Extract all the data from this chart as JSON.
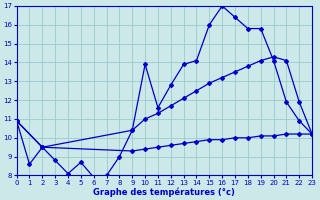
{
  "xlabel": "Graphe des températures (°c)",
  "bg_color": "#cce8e8",
  "line_color": "#0000cc",
  "grid_color": "#99cccc",
  "xlim": [
    0,
    23
  ],
  "ylim": [
    8,
    17
  ],
  "xticks": [
    0,
    1,
    2,
    3,
    4,
    5,
    6,
    7,
    8,
    9,
    10,
    11,
    12,
    13,
    14,
    15,
    16,
    17,
    18,
    19,
    20,
    21,
    22,
    23
  ],
  "yticks": [
    8,
    9,
    10,
    11,
    12,
    13,
    14,
    15,
    16,
    17
  ],
  "series1_x": [
    0,
    1,
    2,
    3,
    4,
    5,
    6,
    7,
    8,
    9,
    10,
    11,
    12,
    13,
    14,
    15,
    16,
    17,
    18,
    19,
    20,
    21,
    22,
    23
  ],
  "series1_y": [
    10.9,
    8.6,
    9.5,
    8.8,
    8.1,
    8.7,
    7.9,
    8.0,
    9.0,
    10.4,
    13.9,
    11.6,
    12.8,
    13.9,
    14.1,
    16.0,
    17.0,
    16.4,
    15.8,
    15.8,
    14.1,
    11.9,
    10.9,
    10.2
  ],
  "series2_x": [
    0,
    2,
    9,
    10,
    11,
    12,
    13,
    14,
    15,
    16,
    17,
    18,
    19,
    20,
    21,
    22,
    23
  ],
  "series2_y": [
    10.9,
    9.5,
    10.4,
    11.0,
    11.3,
    11.7,
    12.1,
    12.5,
    12.9,
    13.2,
    13.5,
    13.8,
    14.1,
    14.3,
    14.1,
    11.9,
    10.2
  ],
  "series3_x": [
    0,
    2,
    9,
    10,
    11,
    12,
    13,
    14,
    15,
    16,
    17,
    18,
    19,
    20,
    21,
    22,
    23
  ],
  "series3_y": [
    10.9,
    9.5,
    9.3,
    9.4,
    9.5,
    9.6,
    9.7,
    9.8,
    9.9,
    9.9,
    10.0,
    10.0,
    10.1,
    10.1,
    10.2,
    10.2,
    10.2
  ]
}
